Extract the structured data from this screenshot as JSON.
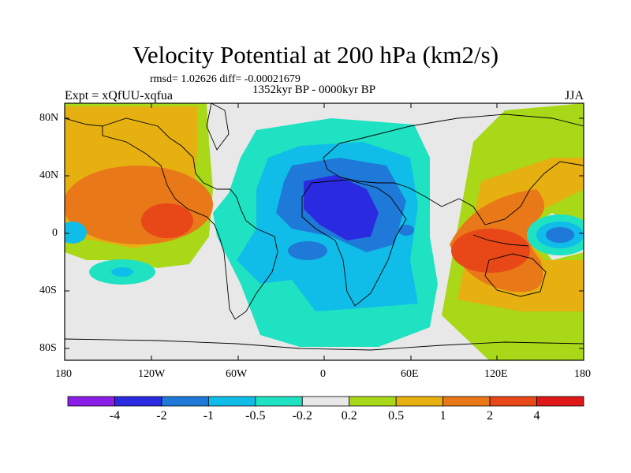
{
  "title": "Velocity Potential at 200 hPa (km2/s)",
  "stats": "rmsd= 1.02626 diff= -0.00021679",
  "period": "1352kyr BP - 0000kyr BP",
  "experiment": "Expt = xQfUU-xqfua",
  "season": "JJA",
  "lat_ticks": [
    "80N",
    "40N",
    "0",
    "40S",
    "80S"
  ],
  "lon_ticks": [
    "180",
    "120W",
    "60W",
    "0",
    "60E",
    "120E",
    "180"
  ],
  "legend": {
    "colors": [
      "#8a1ee6",
      "#2a2ae0",
      "#1f79d8",
      "#10bde8",
      "#1fe2c2",
      "#e8e8e8",
      "#a8d818",
      "#e6b010",
      "#e87818",
      "#e84818",
      "#e01818"
    ],
    "labels": [
      "-4",
      "-2",
      "-1",
      "-0.5",
      "-0.2",
      "0.2",
      "0.5",
      "1",
      "2",
      "4"
    ]
  }
}
